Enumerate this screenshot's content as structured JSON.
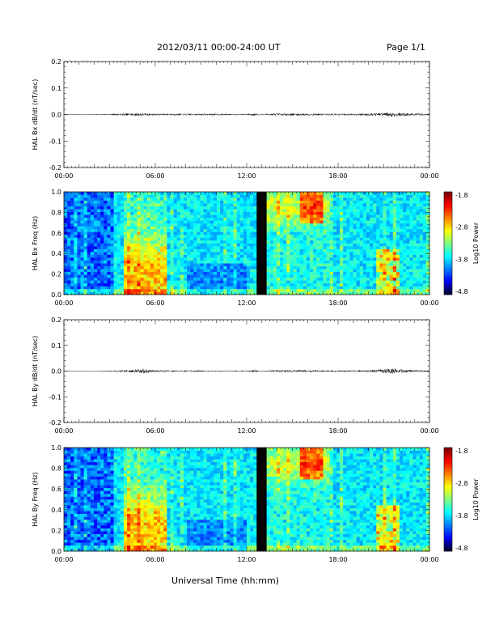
{
  "header": {
    "title": "2012/03/11   00:00-24:00 UT",
    "page": "Page 1/1"
  },
  "x_axis_title": "Universal Time (hh:mm)",
  "chart_data": [
    {
      "type": "line",
      "ylabel": "HAL Bx dB/dt (nT/sec)",
      "xlim": [
        0,
        24
      ],
      "x_ticks": [
        "00:00",
        "06:00",
        "12:00",
        "18:00",
        "00:00"
      ],
      "ylim": [
        -0.2,
        0.2
      ],
      "y_ticks": [
        "0.2",
        "0.1",
        "0.0",
        "-0.1",
        "-0.2"
      ],
      "series": [
        {
          "x": [
            0,
            1,
            2,
            3,
            3.5,
            4,
            4.5,
            5,
            5.5,
            6,
            7,
            8,
            9,
            10,
            11,
            12,
            12.4,
            13,
            13.5,
            14,
            15,
            16,
            17,
            18,
            19,
            20,
            21,
            21.5,
            22,
            23,
            24
          ],
          "amplitude": [
            0.001,
            0.001,
            0.001,
            0.002,
            0.003,
            0.004,
            0.005,
            0.005,
            0.004,
            0.003,
            0.003,
            0.003,
            0.003,
            0.003,
            0.002,
            0.002,
            0.004,
            0.005,
            0.003,
            0.004,
            0.004,
            0.004,
            0.003,
            0.003,
            0.003,
            0.004,
            0.006,
            0.009,
            0.006,
            0.004,
            0.003
          ]
        }
      ]
    },
    {
      "type": "heatmap",
      "ylabel": "HAL Bx Freq (Hz)",
      "xlim": [
        0,
        24
      ],
      "x_ticks": [
        "00:00",
        "06:00",
        "12:00",
        "18:00",
        "00:00"
      ],
      "ylim": [
        0,
        1.0
      ],
      "y_ticks": [
        "1.0",
        "0.8",
        "0.6",
        "0.4",
        "0.2",
        "0.0"
      ],
      "colorbar": {
        "label": "Log10 Power",
        "range": [
          -4.8,
          -1.8
        ],
        "ticks": [
          "-1.8",
          "-2.8",
          "-3.8",
          "-4.8"
        ]
      },
      "data_gap": [
        12.75,
        13.25
      ]
    },
    {
      "type": "line",
      "ylabel": "HAL By dB/dt (nT/sec)",
      "xlim": [
        0,
        24
      ],
      "x_ticks": [
        "00:00",
        "06:00",
        "12:00",
        "18:00",
        "00:00"
      ],
      "ylim": [
        -0.2,
        0.2
      ],
      "y_ticks": [
        "0.2",
        "0.1",
        "0.0",
        "-0.1",
        "-0.2"
      ],
      "series": [
        {
          "x": [
            0,
            1,
            2,
            3,
            3.5,
            4,
            4.5,
            5,
            5.3,
            5.6,
            6,
            7,
            8,
            9,
            10,
            11,
            12,
            12.4,
            13,
            13.5,
            14,
            15,
            16,
            17,
            18,
            19,
            20,
            21,
            21.5,
            22,
            23,
            24
          ],
          "amplitude": [
            0.001,
            0.001,
            0.001,
            0.002,
            0.003,
            0.004,
            0.006,
            0.007,
            0.01,
            0.006,
            0.004,
            0.003,
            0.003,
            0.003,
            0.002,
            0.002,
            0.002,
            0.004,
            0.004,
            0.003,
            0.004,
            0.004,
            0.004,
            0.003,
            0.003,
            0.003,
            0.004,
            0.007,
            0.011,
            0.007,
            0.004,
            0.003
          ]
        }
      ]
    },
    {
      "type": "heatmap",
      "ylabel": "HAL By Freq (Hz)",
      "xlim": [
        0,
        24
      ],
      "x_ticks": [
        "00:00",
        "06:00",
        "12:00",
        "18:00",
        "00:00"
      ],
      "ylim": [
        0,
        1.0
      ],
      "y_ticks": [
        "1.0",
        "0.8",
        "0.6",
        "0.4",
        "0.2",
        "0.0"
      ],
      "colorbar": {
        "label": "Log10 Power",
        "range": [
          -4.8,
          -1.8
        ],
        "ticks": [
          "-1.8",
          "-2.8",
          "-3.8",
          "-4.8"
        ]
      },
      "data_gap": [
        12.75,
        13.25
      ]
    }
  ]
}
